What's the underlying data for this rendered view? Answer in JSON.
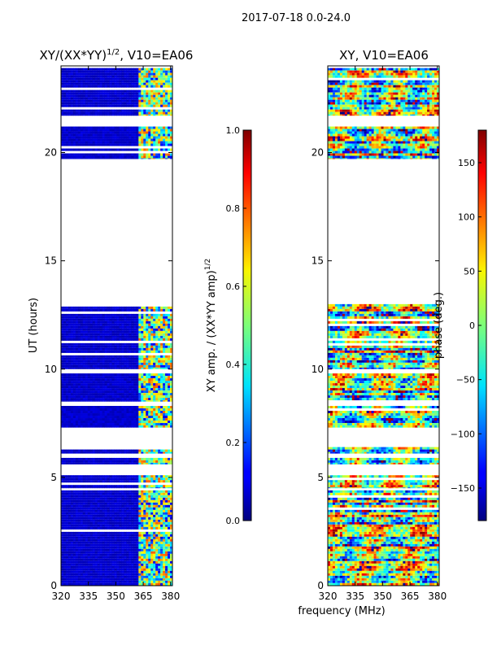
{
  "figure": {
    "suptitle": "2017-07-18 0.0-24.0",
    "shared_xlabel": "frequency (MHz)"
  },
  "chart_data": [
    {
      "type": "heatmap",
      "title_main": "XY/(XX*YY)",
      "title_exp": "1/2",
      "title_tail": ", V10=EA06",
      "xlabel": "",
      "ylabel": "UT (hours)",
      "xlim": [
        320,
        381
      ],
      "ylim": [
        0,
        24
      ],
      "xticks": [
        320,
        335,
        350,
        365,
        380
      ],
      "yticks": [
        0,
        5,
        10,
        15,
        20
      ],
      "colorbar": {
        "label_main": "XY amp. / (XX*YY amp)",
        "label_exp": "1/2",
        "range": [
          0.0,
          1.0
        ],
        "ticks": [
          "0.0",
          "0.2",
          "0.4",
          "0.6",
          "0.8",
          "1.0"
        ],
        "colormap": "jet"
      },
      "data_bands_hours": [
        [
          0.0,
          4.4
        ],
        [
          4.5,
          5.1
        ],
        [
          5.6,
          5.9
        ],
        [
          6.1,
          6.4
        ],
        [
          7.3,
          8.3
        ],
        [
          8.5,
          9.8
        ],
        [
          10.0,
          13.0
        ],
        [
          19.7,
          21.2
        ],
        [
          21.7,
          23.9
        ]
      ],
      "bright_region_mhz": [
        362,
        381
      ],
      "background_level": 0.05,
      "bright_level_range": [
        0.3,
        0.8
      ]
    },
    {
      "type": "heatmap",
      "title_main": "XY, V10=EA06",
      "xlabel": "",
      "ylabel": "",
      "xlim": [
        320,
        381
      ],
      "ylim": [
        0,
        24
      ],
      "xticks": [
        320,
        335,
        350,
        365,
        380
      ],
      "yticks": [
        0,
        5,
        10,
        15,
        20
      ],
      "colorbar": {
        "label_main": "phase (deg.)",
        "range": [
          -180,
          180
        ],
        "ticks": [
          "150",
          "100",
          "50",
          "0",
          "−50",
          "−100",
          "−150"
        ],
        "tick_values": [
          150,
          100,
          50,
          0,
          -50,
          -100,
          -150
        ],
        "colormap": "jet"
      },
      "data_bands_hours": [
        [
          0.0,
          4.4
        ],
        [
          4.5,
          5.1
        ],
        [
          5.6,
          5.9
        ],
        [
          6.1,
          6.4
        ],
        [
          7.3,
          8.3
        ],
        [
          8.5,
          9.8
        ],
        [
          10.0,
          13.0
        ],
        [
          19.7,
          21.2
        ],
        [
          21.7,
          23.9
        ]
      ]
    }
  ]
}
